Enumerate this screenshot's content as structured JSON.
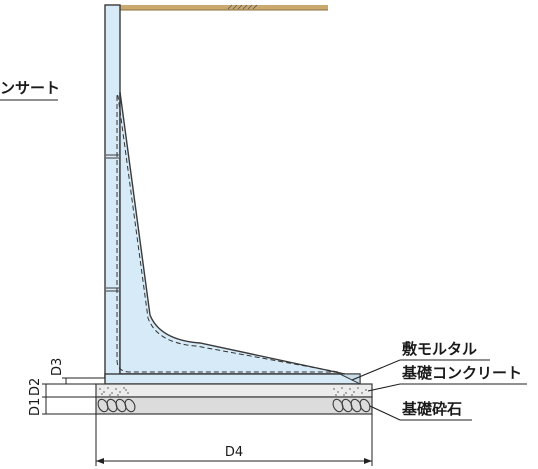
{
  "labels": {
    "insert": "ンサート",
    "bed_mortar": "敷モルタル",
    "foundation_concrete": "基礎コンクリート",
    "foundation_crushed_stone": "基礎砕石",
    "d1": "D1",
    "d2": "D2",
    "d3": "D3",
    "d4": "D4"
  },
  "colors": {
    "wall_fill": "#d7eaf7",
    "wall_stroke": "#3a3a3a",
    "soil": "#c9a96e",
    "concrete_fill": "#e6e6e6",
    "gravel_fill": "#d9d9d9",
    "line": "#222222"
  }
}
